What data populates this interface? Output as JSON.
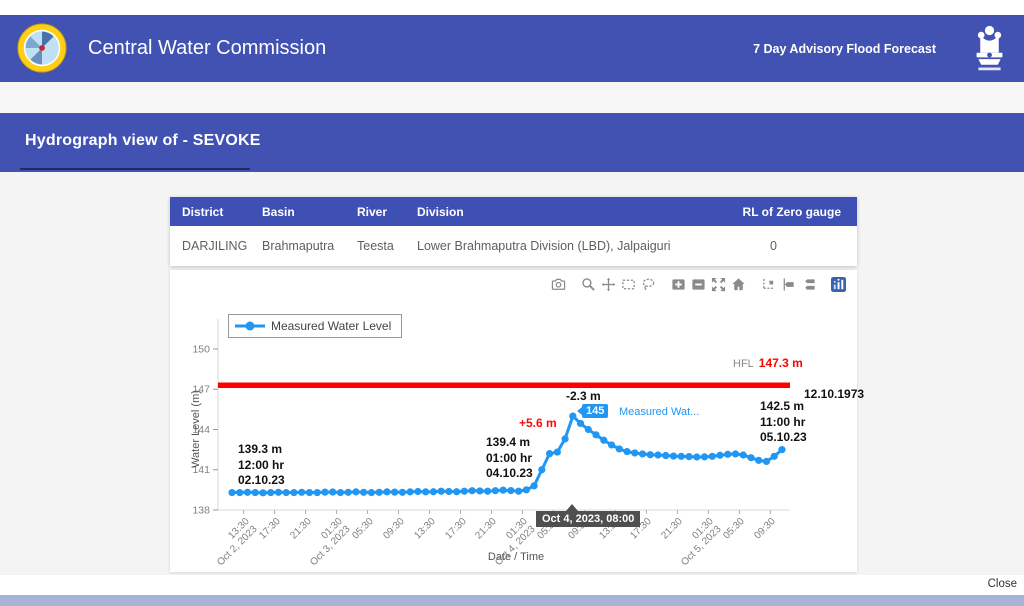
{
  "page": {
    "header": {
      "brand": "Central Water Commission",
      "tagline": "7 Day Advisory Flood Forecast"
    },
    "modal_title": "Hydrograph view of - SEVOKE",
    "close_label": "Close"
  },
  "station_table": {
    "columns": [
      "District",
      "Basin",
      "River",
      "Division",
      "RL of Zero gauge"
    ],
    "rows": [
      [
        "DARJILING",
        "Brahmaputra",
        "Teesta",
        "Lower Brahmaputra Division (LBD), Jalpaiguri",
        "0"
      ]
    ]
  },
  "modebar_icons": [
    "download-plot-icon",
    "zoom-icon",
    "pan-icon",
    "box-select-icon",
    "lasso-select-icon",
    "zoom-in-icon",
    "zoom-out-icon",
    "autoscale-icon",
    "reset-axes-icon",
    "toggle-spikelines-icon",
    "hover-closest-icon",
    "hover-compare-icon",
    "plotly-logo-icon"
  ],
  "chart_data": {
    "type": "line",
    "xlabel": "Date / Time",
    "ylabel": "Water Level (m)",
    "ylim": [
      138,
      150.5
    ],
    "yticks": [
      138,
      141,
      144,
      147,
      150
    ],
    "x_start": "Oct 2, 2023 12:00",
    "x_step_hours": 1,
    "grid": false,
    "legend_position": "top-left",
    "xticks": [
      {
        "t": "13:30",
        "d": "Oct 2, 2023"
      },
      {
        "t": "17:30"
      },
      {
        "t": "21:30"
      },
      {
        "t": "01:30",
        "d": "Oct 3, 2023"
      },
      {
        "t": "05:30"
      },
      {
        "t": "09:30"
      },
      {
        "t": "13:30"
      },
      {
        "t": "17:30"
      },
      {
        "t": "21:30"
      },
      {
        "t": "01:30",
        "d": "Oct 4, 2023"
      },
      {
        "t": "05:30"
      },
      {
        "t": "09:30"
      },
      {
        "t": "13:30"
      },
      {
        "t": "17:30"
      },
      {
        "t": "21:30"
      },
      {
        "t": "01:30",
        "d": "Oct 5, 2023"
      },
      {
        "t": "05:30"
      },
      {
        "t": "09:30"
      }
    ],
    "series": [
      {
        "name": "Measured Water Level",
        "color": "#2196f3",
        "values": [
          139.3,
          139.3,
          139.32,
          139.3,
          139.28,
          139.3,
          139.32,
          139.3,
          139.3,
          139.32,
          139.3,
          139.3,
          139.33,
          139.34,
          139.3,
          139.32,
          139.35,
          139.32,
          139.3,
          139.32,
          139.35,
          139.33,
          139.32,
          139.35,
          139.38,
          139.35,
          139.36,
          139.4,
          139.38,
          139.36,
          139.4,
          139.44,
          139.42,
          139.4,
          139.44,
          139.48,
          139.45,
          139.4,
          139.5,
          139.8,
          141.0,
          142.2,
          142.32,
          143.3,
          145.0,
          144.45,
          144.0,
          143.6,
          143.2,
          142.85,
          142.55,
          142.35,
          142.25,
          142.18,
          142.12,
          142.1,
          142.06,
          142.02,
          142.0,
          141.98,
          141.95,
          141.96,
          142.0,
          142.08,
          142.15,
          142.18,
          142.1,
          141.9,
          141.7,
          141.62,
          142.0,
          142.5
        ]
      }
    ],
    "hfl_line": {
      "label": "HFL",
      "value": 147.3,
      "value_label": "147.3 m",
      "date_label": "12.10.1973",
      "color": "#ff0000"
    },
    "annotations": [
      {
        "id": "start",
        "lines": [
          "139.3 m",
          "12:00 hr",
          "02.10.23"
        ],
        "color": "#111111"
      },
      {
        "id": "rise-start",
        "lines": [
          "139.4 m",
          "01:00 hr",
          "04.10.23"
        ],
        "color": "#111111"
      },
      {
        "id": "rise-amount",
        "lines": [
          "+5.6 m"
        ],
        "color": "#f40b0b"
      },
      {
        "id": "fall-amount",
        "lines": [
          "-2.3 m"
        ],
        "color": "#111111"
      },
      {
        "id": "end",
        "lines": [
          "142.5 m",
          "11:00 hr",
          "05.10.23"
        ],
        "color": "#111111"
      }
    ],
    "hover": {
      "point_value": "145",
      "series_short": "Measured Wat...",
      "x_tooltip": "Oct 4, 2023, 08:00"
    }
  },
  "colors": {
    "primary": "#4152b3",
    "table_header": "#3f50b5",
    "series": "#2196f3",
    "hfl": "#ff0000",
    "bottom_bar": "#a9b2d8"
  }
}
